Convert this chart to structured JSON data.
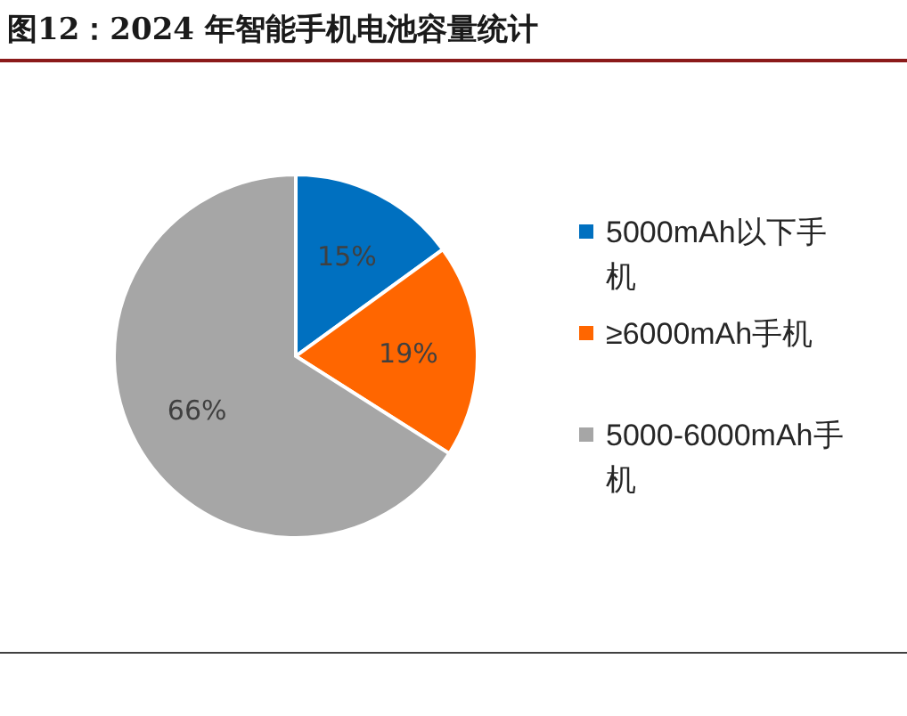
{
  "chart_data": {
    "type": "pie",
    "title": "图12：2024 年智能手机电池容量统计",
    "categories": [
      "5000mAh以下手机",
      "≥6000mAh手机",
      "5000-6000mAh手机"
    ],
    "values": [
      15,
      19,
      66
    ],
    "colors": [
      "#0070c0",
      "#ff6600",
      "#a6a6a6"
    ],
    "value_labels": [
      "15%",
      "19%",
      "66%"
    ],
    "legend": "right"
  }
}
